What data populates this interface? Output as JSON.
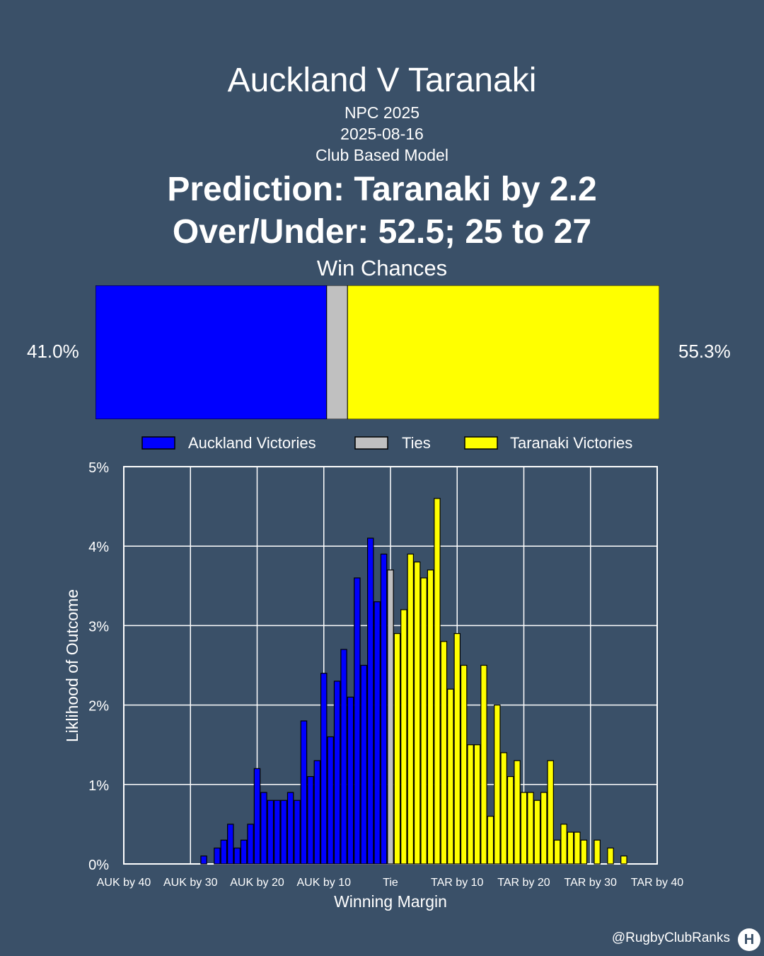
{
  "header": {
    "title": "Auckland V Taranaki",
    "competition": "NPC 2025",
    "date": "2025-08-16",
    "model": "Club Based Model",
    "prediction": "Prediction: Taranaki by 2.2",
    "over_under": "Over/Under: 52.5; 25 to 27"
  },
  "win_chances": {
    "title": "Win Chances",
    "home_label": "41.0%",
    "away_label": "55.3%",
    "home_pct": 41.0,
    "tie_pct": 3.7,
    "away_pct": 55.3
  },
  "legend": {
    "home": "Auckland Victories",
    "tie": "Ties",
    "away": "Taranaki Victories"
  },
  "colors": {
    "home": "#0000ff",
    "tie": "#c0c0c0",
    "away": "#ffff00",
    "background": "#3a5068"
  },
  "footer": {
    "handle": "@RugbyClubRanks",
    "logo": "H"
  },
  "chart_data": {
    "type": "bar",
    "xlabel": "Winning Margin",
    "ylabel": "Liklihood of Outcome",
    "xlim": [
      -40,
      40
    ],
    "ylim": [
      0,
      5
    ],
    "xticks": [
      -40,
      -30,
      -20,
      -10,
      0,
      10,
      20,
      30,
      40
    ],
    "xtick_labels": [
      "AUK by 40",
      "AUK by 30",
      "AUK by 20",
      "AUK by 10",
      "Tie",
      "TAR by 10",
      "TAR by 20",
      "TAR by 30",
      "TAR by 40"
    ],
    "yticks": [
      0,
      1,
      2,
      3,
      4,
      5
    ],
    "ytick_labels": [
      "0%",
      "1%",
      "2%",
      "3%",
      "4%",
      "5%"
    ],
    "grid": true,
    "legend_position": "top",
    "series": [
      {
        "name": "Auckland Victories",
        "x": [
          -28,
          -26,
          -25,
          -24,
          -23,
          -22,
          -21,
          -20,
          -19,
          -18,
          -17,
          -16,
          -15,
          -14,
          -13,
          -12,
          -11,
          -10,
          -9,
          -8,
          -7,
          -6,
          -5,
          -4,
          -3,
          -2,
          -1
        ],
        "values": [
          0.1,
          0.2,
          0.3,
          0.5,
          0.2,
          0.3,
          0.5,
          1.2,
          0.9,
          0.8,
          0.8,
          0.8,
          0.9,
          0.8,
          1.8,
          1.1,
          1.3,
          2.4,
          1.6,
          2.3,
          2.7,
          2.1,
          3.6,
          2.5,
          4.1,
          3.3,
          3.9
        ]
      },
      {
        "name": "Ties",
        "x": [
          0
        ],
        "values": [
          3.7
        ]
      },
      {
        "name": "Taranaki Victories",
        "x": [
          1,
          2,
          3,
          4,
          5,
          6,
          7,
          8,
          9,
          10,
          11,
          12,
          13,
          14,
          15,
          16,
          17,
          18,
          19,
          20,
          21,
          22,
          23,
          24,
          25,
          26,
          27,
          28,
          29,
          31,
          33,
          35
        ],
        "values": [
          2.9,
          3.2,
          3.9,
          3.8,
          3.6,
          3.7,
          4.6,
          2.8,
          2.2,
          2.9,
          2.5,
          1.5,
          1.5,
          2.5,
          0.6,
          2.0,
          1.4,
          1.1,
          1.3,
          0.9,
          0.9,
          0.8,
          0.9,
          1.3,
          0.3,
          0.5,
          0.4,
          0.4,
          0.3,
          0.3,
          0.2,
          0.1
        ]
      }
    ]
  }
}
